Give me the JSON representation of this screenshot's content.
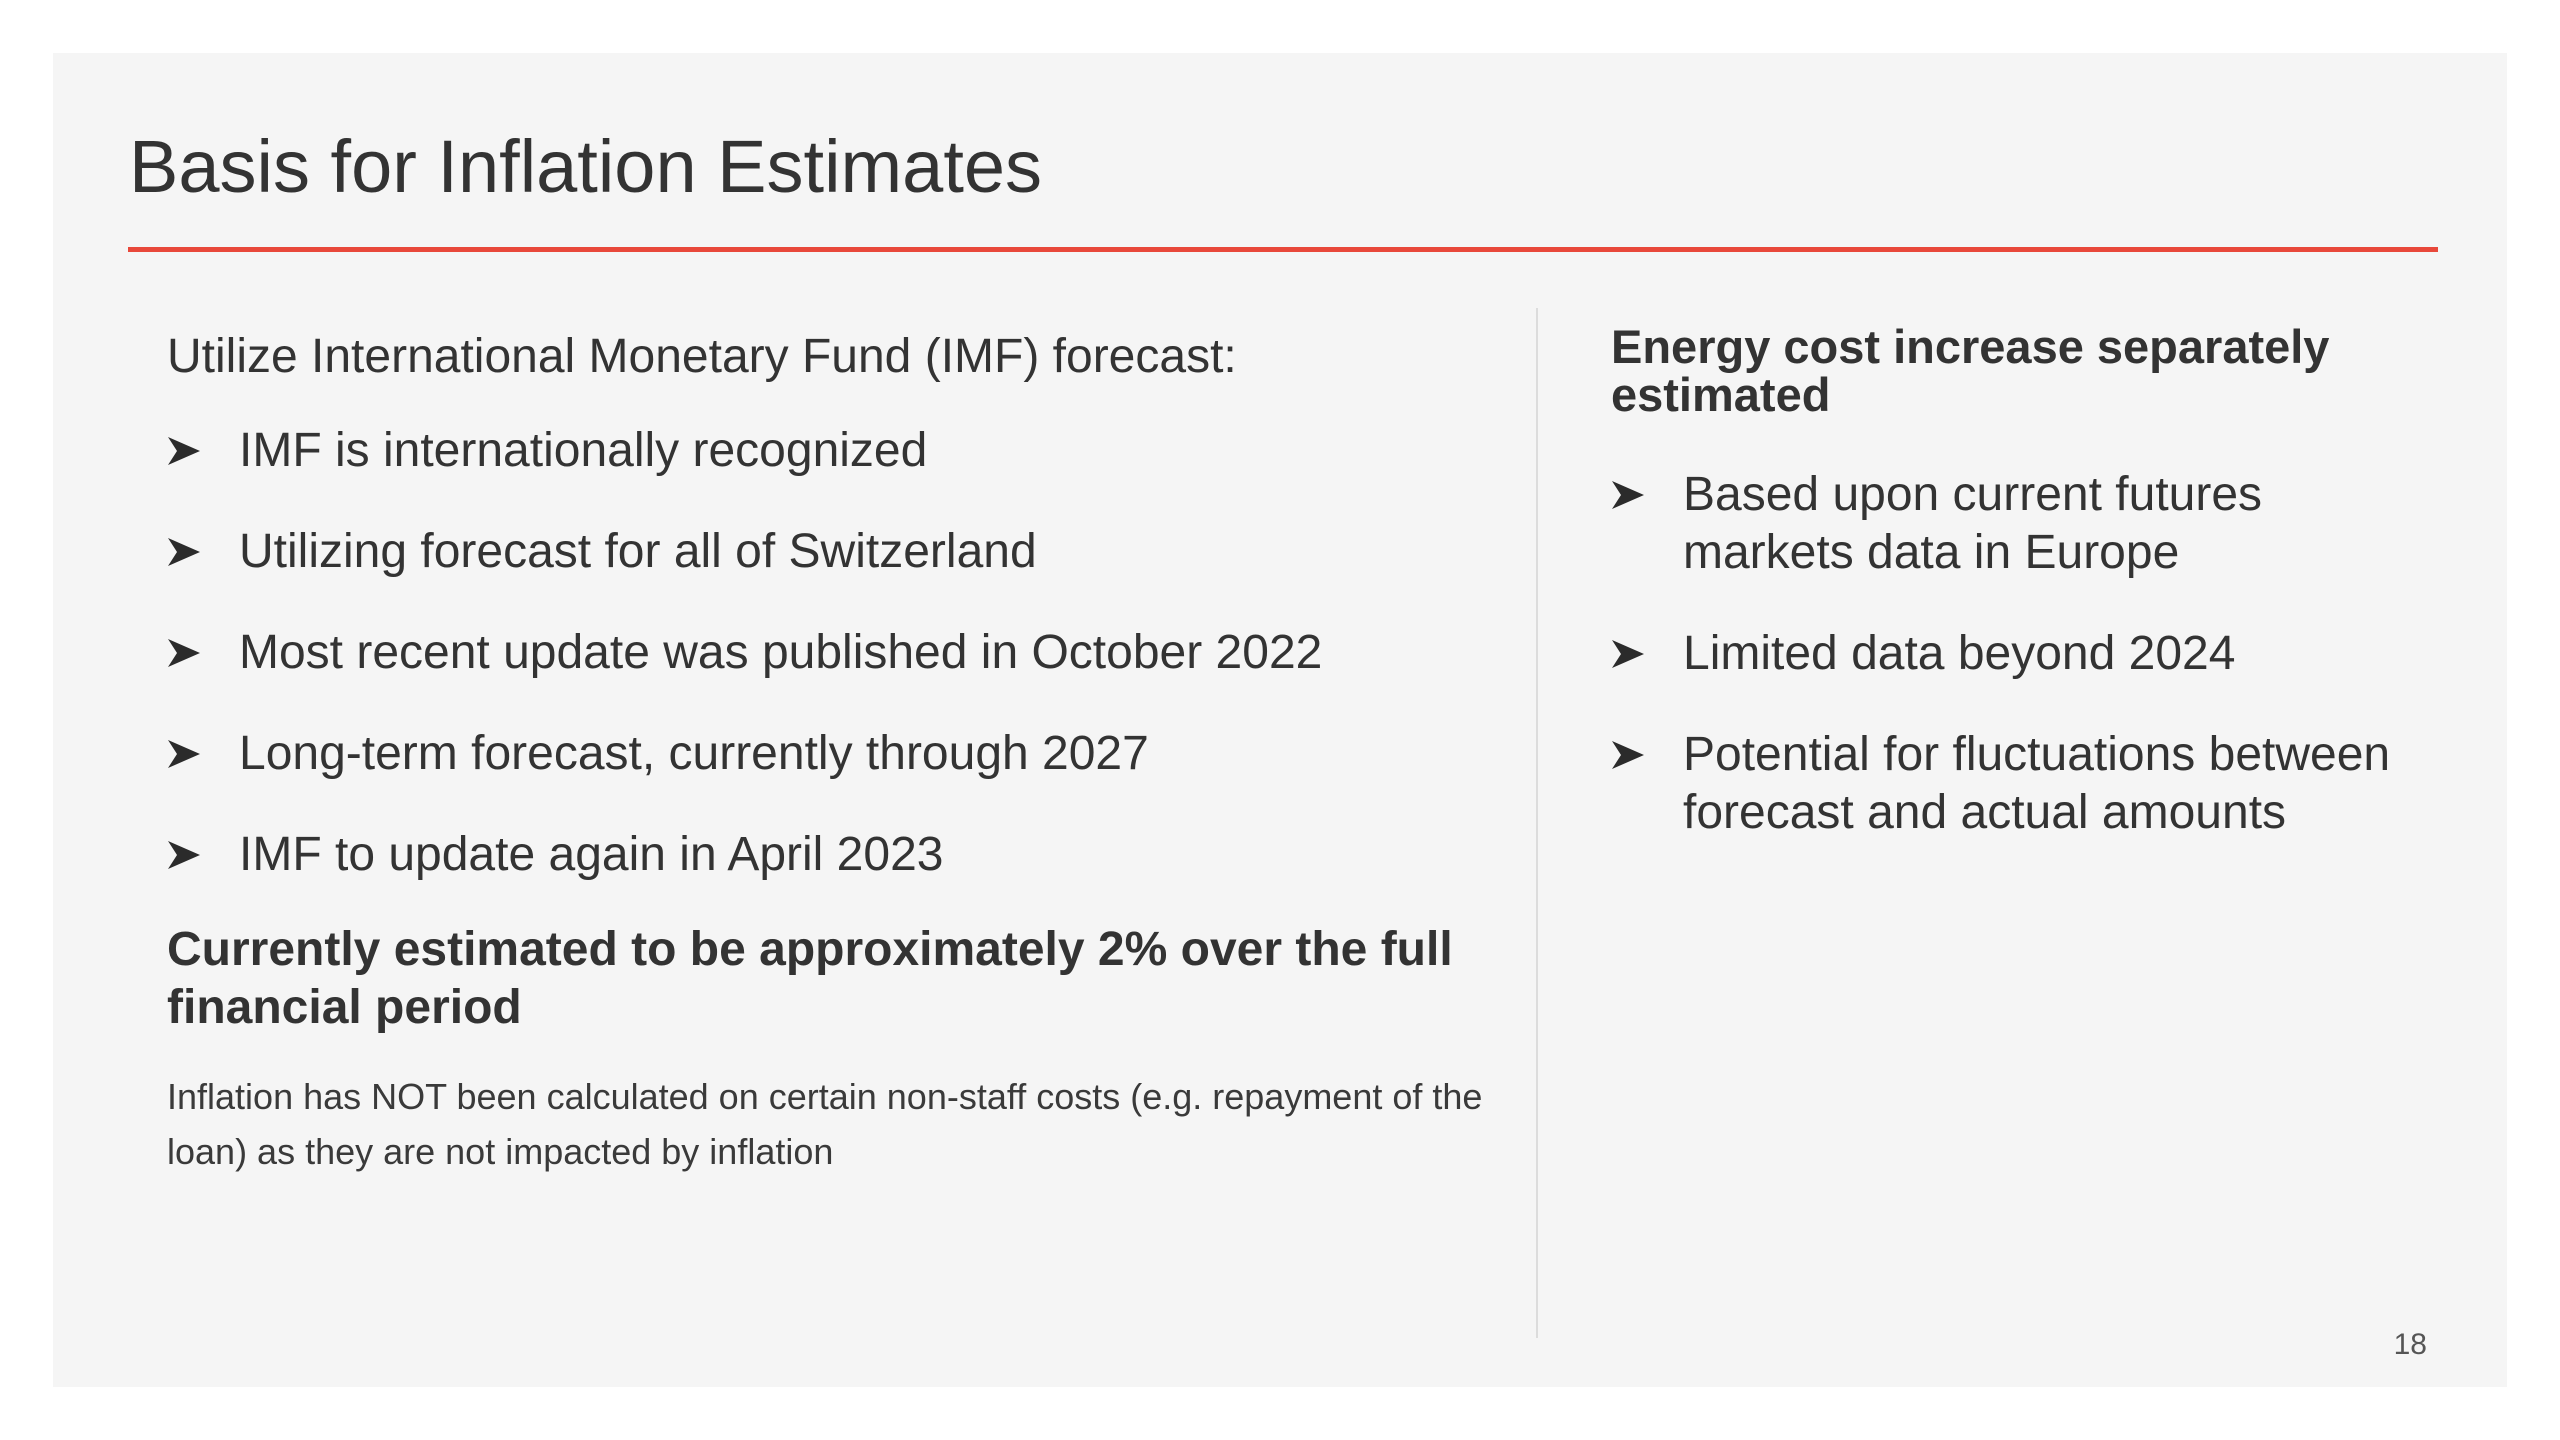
{
  "slide": {
    "title": "Basis for Inflation Estimates",
    "page_number": "18",
    "accent_color": "#e8483a"
  },
  "left": {
    "lead": "Utilize International Monetary Fund (IMF) forecast:",
    "bullets": [
      "IMF is internationally recognized",
      "Utilizing forecast for all of Switzerland",
      "Most recent update was published in October 2022",
      "Long-term forecast, currently through 2027",
      "IMF to update again in April 2023"
    ],
    "emphasis": "Currently estimated to be approximately 2% over the full financial period",
    "note": "Inflation has NOT been calculated on certain non-staff costs (e.g. repayment of the loan) as they are not impacted by inflation"
  },
  "right": {
    "heading": "Energy cost increase separately estimated",
    "bullets": [
      "Based upon current futures markets data in Europe",
      "Limited data beyond 2024",
      "Potential for fluctuations between forecast and actual amounts"
    ]
  },
  "icons": {
    "bullet": "arrowhead-bullet-icon"
  }
}
